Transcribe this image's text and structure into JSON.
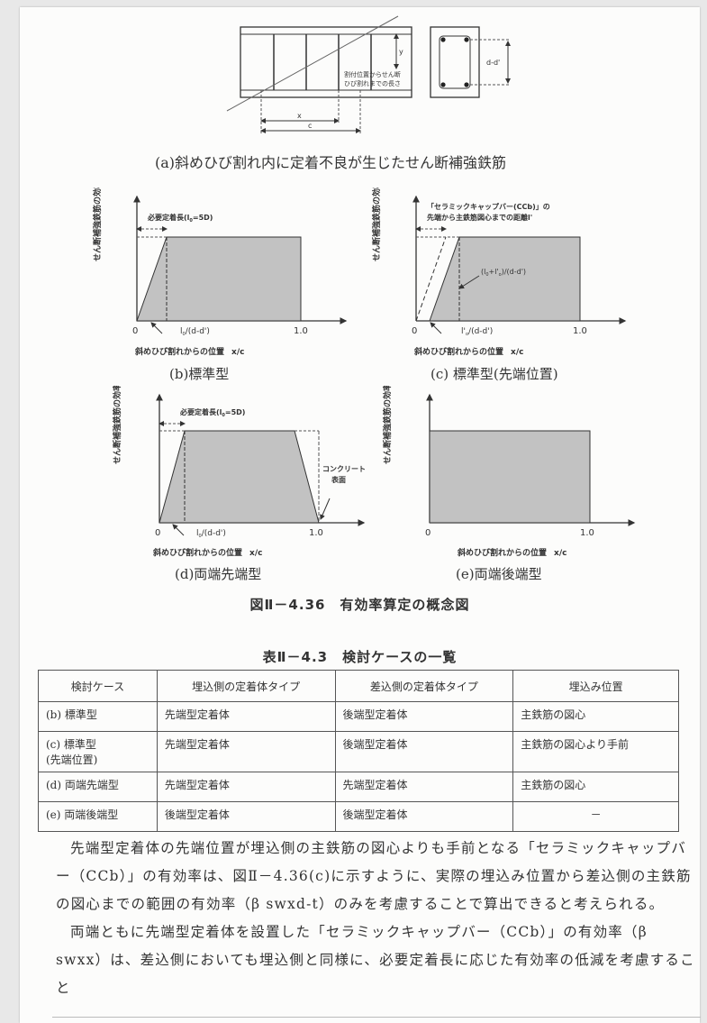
{
  "figure_a": {
    "caption": "(a)斜めひび割れ内に定着不良が生じたせん断補強鉄筋",
    "label_c": "c",
    "label_x": "x",
    "label_y": "y",
    "note_line1": "割付位置からせん断",
    "note_line2": "ひび割れまでの長さ",
    "label_dd": "d-d'"
  },
  "charts": {
    "y_axis_label": "せん断補強鉄筋の効率",
    "x_axis_label": "斜めひび割れからの位置",
    "x_axis_unit": "x/c",
    "tick_zero": "0",
    "tick_one": "1.0",
    "b": {
      "caption": "(b)標準型",
      "note": "必要定着長(l",
      "note2": "=5D)",
      "marker": "l",
      "marker_tail": "/(d-d')"
    },
    "c": {
      "caption": "(c) 標準型(先端位置)",
      "note_line1": "「セラミックキャップバー(CCb)」の",
      "note_line2": "先端から主鉄筋図心までの距離l'",
      "inner": "(l",
      "inner_tail": "+l'",
      "inner_end": ")/(d-d')",
      "marker": "l'",
      "marker_tail": "/(d-d')"
    },
    "d": {
      "caption": "(d)両端先端型",
      "note": "必要定着長(l",
      "note2": "=5D)",
      "marker": "l",
      "marker_tail": "/(d-d')",
      "concrete_line1": "コンクリート",
      "concrete_line2": "表面"
    },
    "e": {
      "caption": "(e)両端後端型"
    }
  },
  "figure_caption": "図Ⅱ－4.36　有効率算定の概念図",
  "table": {
    "caption": "表Ⅱ－4.3　検討ケースの一覧",
    "headers": [
      "検討ケース",
      "埋込側の定着体タイプ",
      "差込側の定着体タイプ",
      "埋込み位置"
    ],
    "rows": [
      [
        "(b) 標準型",
        "先端型定着体",
        "後端型定着体",
        "主鉄筋の図心"
      ],
      [
        "(c) 標準型\n(先端位置)",
        "先端型定着体",
        "後端型定着体",
        "主鉄筋の図心より手前"
      ],
      [
        "(d) 両端先端型",
        "先端型定着体",
        "先端型定着体",
        "主鉄筋の図心"
      ],
      [
        "(e) 両端後端型",
        "後端型定着体",
        "後端型定着体",
        "－"
      ]
    ]
  },
  "paragraphs": [
    "先端型定着体の先端位置が埋込側の主鉄筋の図心よりも手前となる「セラミックキャップバー（CCb）」の有効率は、図Ⅱ－4.36(c)に示すように、実際の埋込み位置から差込側の主鉄筋の図心までの範囲の有効率（β swxd-t）のみを考慮することで算出できると考えられる。",
    "両端ともに先端型定着体を設置した「セラミックキャップバー（CCb）」の有効率（β swxx）は、差込側においても埋込側と同様に、必要定着長に応じた有効率の低減を考慮すること"
  ]
}
